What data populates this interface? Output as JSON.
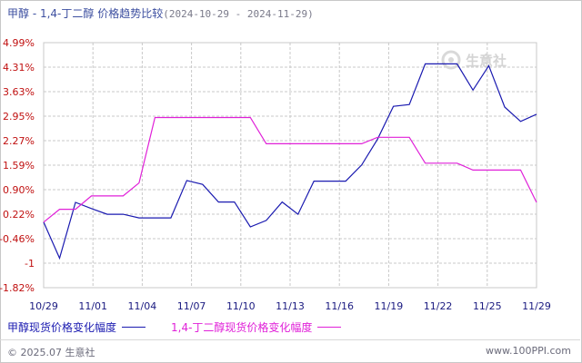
{
  "title": {
    "main": "甲醇 - 1,4-丁二醇 价格趋势比较",
    "range": "(2024-10-29 - 2024-11-29)"
  },
  "watermark": "生意社",
  "footer": {
    "copyright": "© 2025.07 生意社",
    "site": "www.100PPI.com"
  },
  "colors": {
    "series1": "#1a1ab0",
    "series2": "#e020d8",
    "grid": "#c8c8c8",
    "ytick": "#c01010",
    "xtick": "#1a1a80"
  },
  "chart_data": {
    "type": "line",
    "x_tick_labels": [
      "10/29",
      "11/01",
      "11/04",
      "11/07",
      "11/10",
      "11/13",
      "11/16",
      "11/19",
      "11/22",
      "11/25",
      "11/29"
    ],
    "y_tick_labels": [
      "4.99%",
      "4.31%",
      "3.63%",
      "2.95%",
      "2.27%",
      "1.59%",
      "0.90%",
      "0.22%",
      "-0.46%",
      "-1",
      "-1.82%"
    ],
    "ylim": [
      -1.82,
      4.99
    ],
    "grid": true,
    "legend_position": "bottom",
    "series": [
      {
        "name": "甲醇现货价格变化幅度",
        "values": [
          0.0,
          -1.0,
          0.55,
          0.38,
          0.22,
          0.22,
          0.12,
          0.12,
          0.12,
          1.16,
          1.05,
          0.56,
          0.56,
          -0.13,
          0.05,
          0.56,
          0.22,
          1.14,
          1.14,
          1.14,
          1.59,
          2.31,
          3.22,
          3.27,
          4.4,
          4.4,
          4.4,
          3.67,
          4.35,
          3.2,
          2.8,
          3.0
        ]
      },
      {
        "name": "1,4-丁二醇现货价格变化幅度",
        "values": [
          0.0,
          0.36,
          0.36,
          0.73,
          0.73,
          0.73,
          1.09,
          2.91,
          2.91,
          2.91,
          2.91,
          2.91,
          2.91,
          2.91,
          2.18,
          2.18,
          2.18,
          2.18,
          2.18,
          2.18,
          2.18,
          2.36,
          2.36,
          2.36,
          1.64,
          1.64,
          1.64,
          1.45,
          1.45,
          1.45,
          1.45,
          0.55
        ]
      }
    ]
  }
}
